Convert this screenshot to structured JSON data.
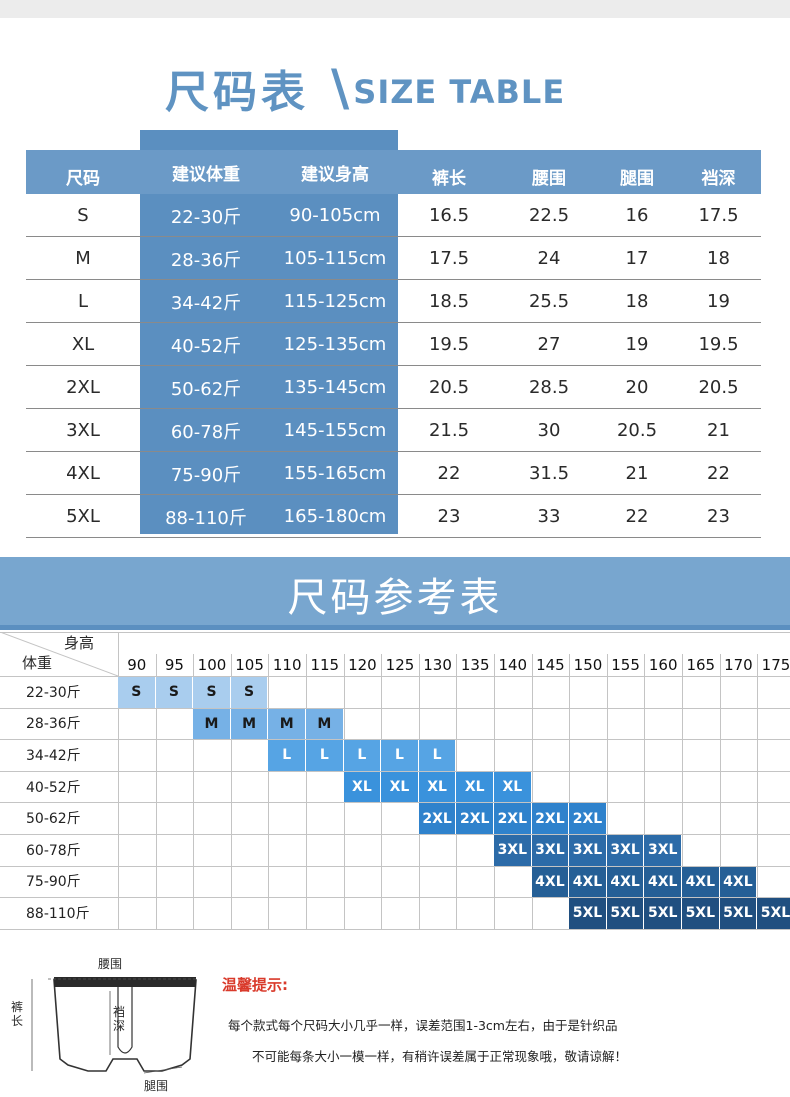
{
  "title": {
    "cn": "尺码表",
    "slash": "\\",
    "en": "SIZE TABLE"
  },
  "size_table": {
    "headers": [
      "尺码",
      "建议体重",
      "建议身高",
      "裤长",
      "腰围",
      "腿围",
      "裆深"
    ],
    "rows": [
      [
        "S",
        "22-30斤",
        "90-105cm",
        "16.5",
        "22.5",
        "16",
        "17.5"
      ],
      [
        "M",
        "28-36斤",
        "105-115cm",
        "17.5",
        "24",
        "17",
        "18"
      ],
      [
        "L",
        "34-42斤",
        "115-125cm",
        "18.5",
        "25.5",
        "18",
        "19"
      ],
      [
        "XL",
        "40-52斤",
        "125-135cm",
        "19.5",
        "27",
        "19",
        "19.5"
      ],
      [
        "2XL",
        "50-62斤",
        "135-145cm",
        "20.5",
        "28.5",
        "20",
        "20.5"
      ],
      [
        "3XL",
        "60-78斤",
        "145-155cm",
        "21.5",
        "30",
        "20.5",
        "21"
      ],
      [
        "4XL",
        "75-90斤",
        "155-165cm",
        "22",
        "31.5",
        "21",
        "22"
      ],
      [
        "5XL",
        "88-110斤",
        "165-180cm",
        "23",
        "33",
        "22",
        "23"
      ]
    ]
  },
  "reference": {
    "title": "尺码参考表",
    "height_label": "身高",
    "weight_label": "体重",
    "heights": [
      "90",
      "95",
      "100",
      "105",
      "110",
      "115",
      "120",
      "125",
      "130",
      "135",
      "140",
      "145",
      "150",
      "155",
      "160",
      "165",
      "170",
      "175"
    ],
    "weights": [
      "22-30斤",
      "28-36斤",
      "34-42斤",
      "40-52斤",
      "50-62斤",
      "60-78斤",
      "75-90斤",
      "88-110斤"
    ],
    "bands": [
      {
        "label": "S",
        "start": 0,
        "count": 4,
        "color": "#a9cdee"
      },
      {
        "label": "M",
        "start": 2,
        "count": 4,
        "color": "#76b1e6"
      },
      {
        "label": "L",
        "start": 4,
        "count": 5,
        "color": "#56a4e4"
      },
      {
        "label": "XL",
        "start": 6,
        "count": 5,
        "color": "#3a92dc"
      },
      {
        "label": "2XL",
        "start": 8,
        "count": 5,
        "color": "#2f82cc"
      },
      {
        "label": "3XL",
        "start": 10,
        "count": 5,
        "color": "#2c6ba8"
      },
      {
        "label": "4XL",
        "start": 11,
        "count": 6,
        "color": "#255f96"
      },
      {
        "label": "5XL",
        "start": 12,
        "count": 6,
        "color": "#204f80"
      }
    ]
  },
  "diagram": {
    "waist": "腰围",
    "length": "裤长",
    "crotch": "裆深",
    "leg": "腿围"
  },
  "tips": {
    "title": "温馨提示:",
    "line1": "每个款式每个尺码大小几乎一样，误差范围1-3cm左右，由于是针织品",
    "line2": "不可能每条大小一模一样，有稍许误差属于正常现象哦，敬请谅解！"
  }
}
